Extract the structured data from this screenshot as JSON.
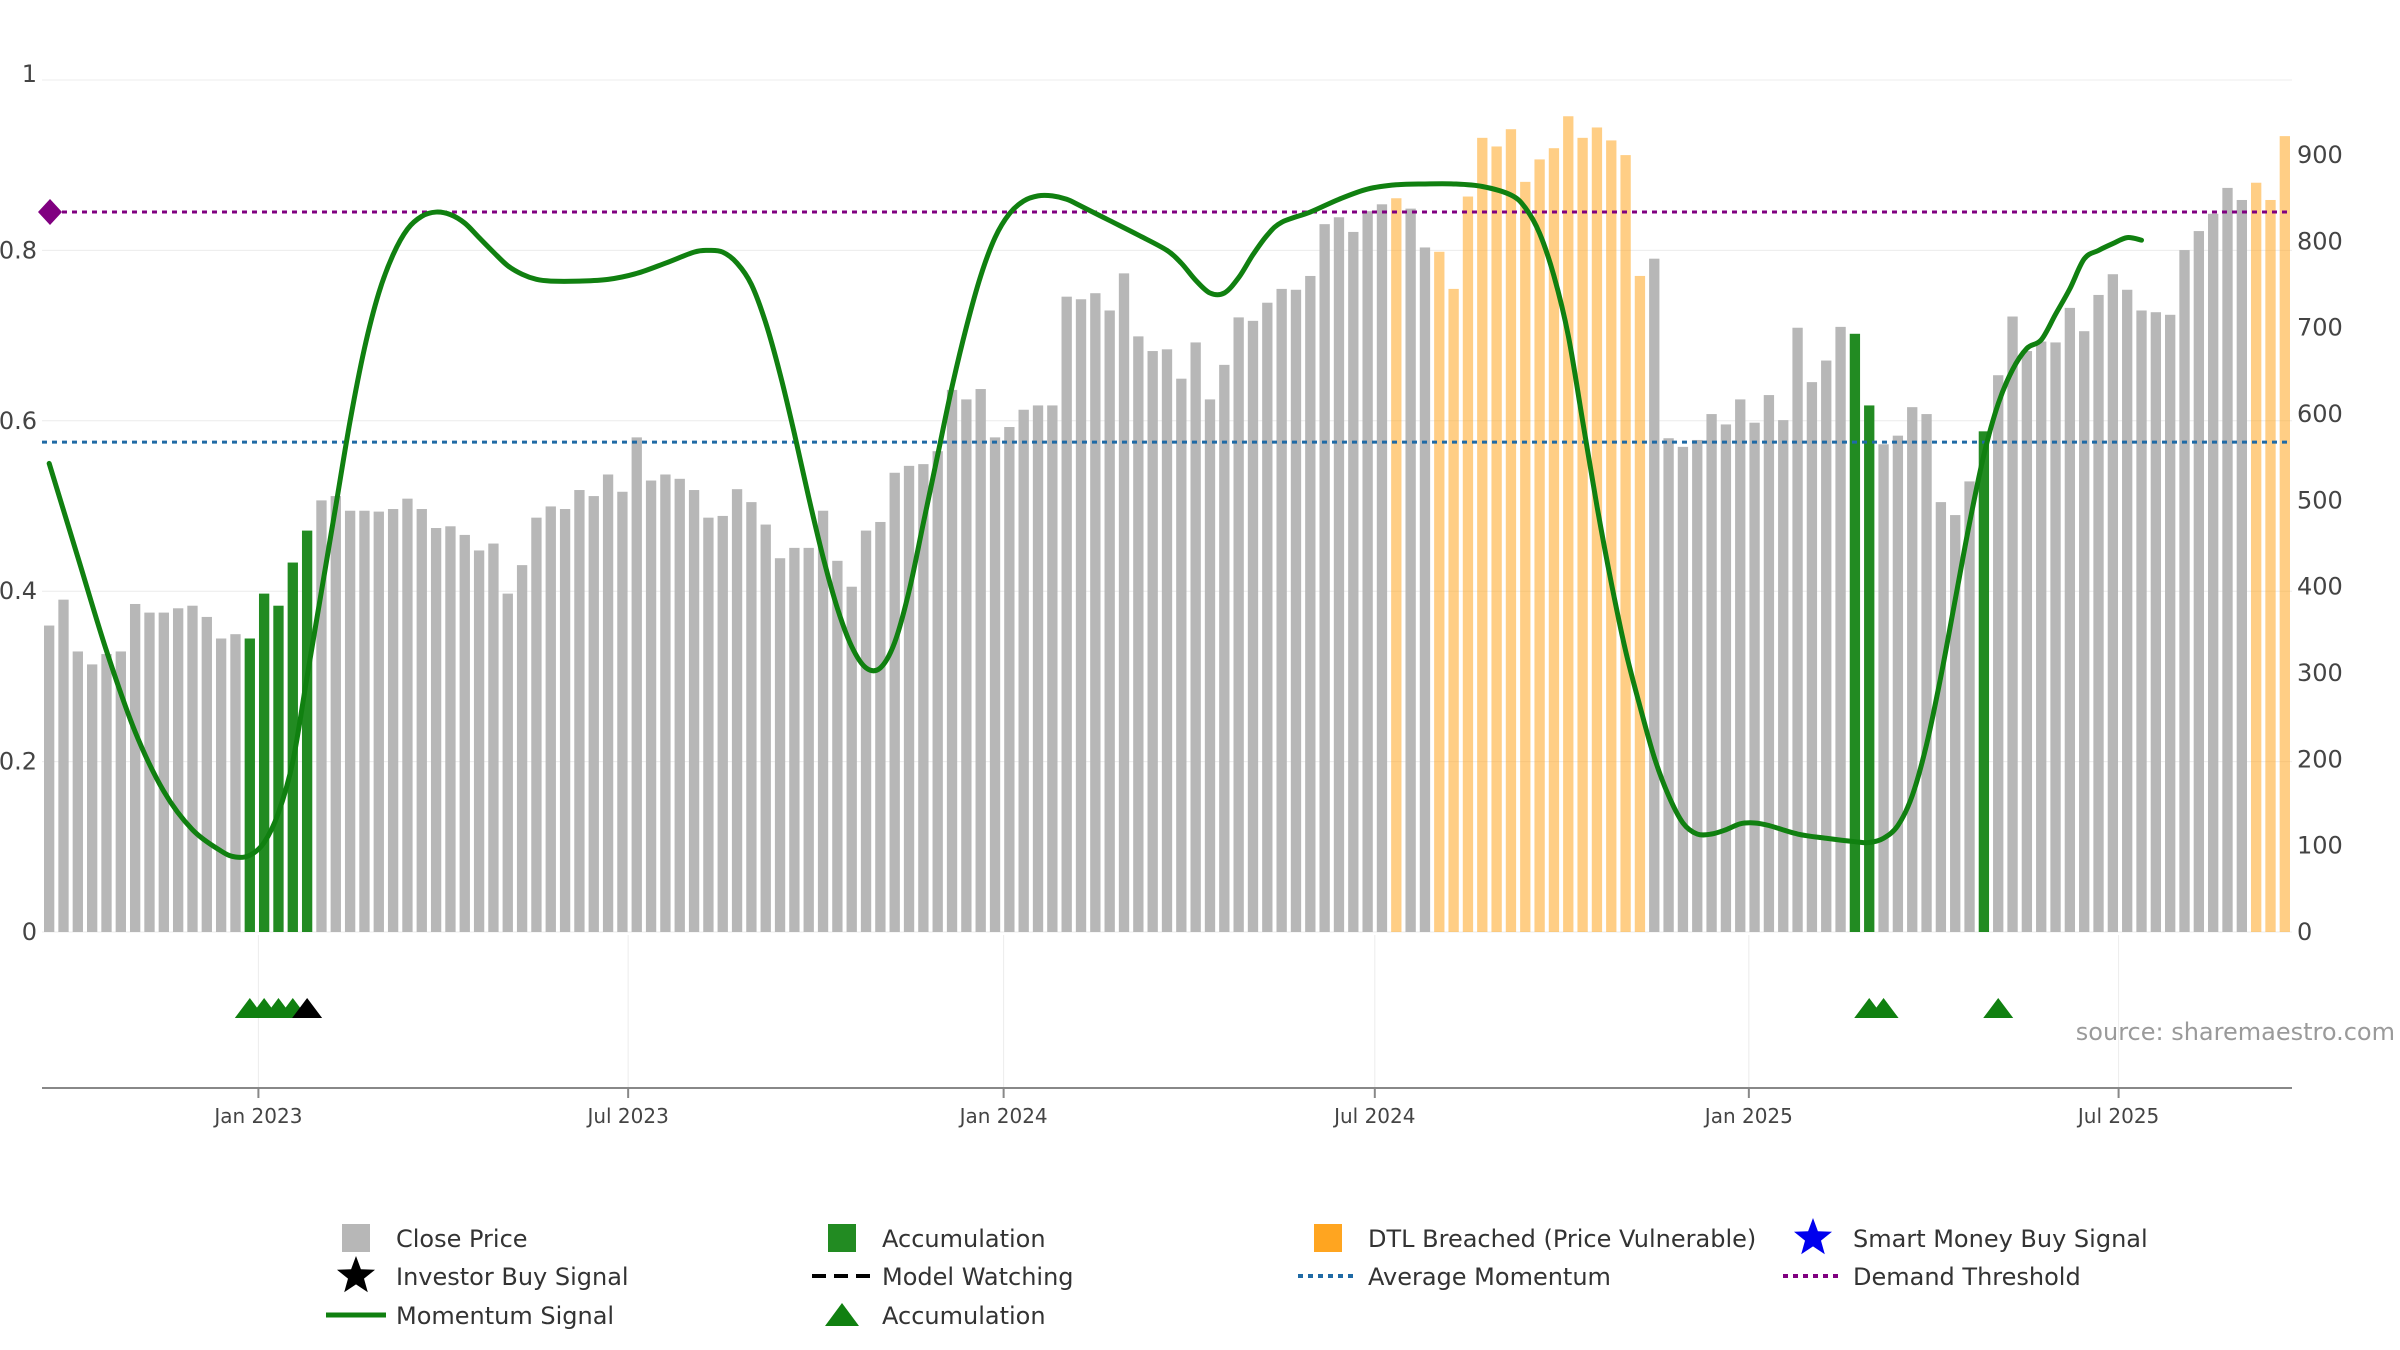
{
  "chart_data": {
    "type": "bar",
    "title": "",
    "left_axis": {
      "range": [
        0,
        1
      ],
      "ticks": [
        "0",
        "0.2",
        "0.4",
        "0.6",
        "0.8",
        "1"
      ]
    },
    "right_axis": {
      "range": [
        0,
        987
      ],
      "ticks": [
        "0",
        "100",
        "200",
        "300",
        "400",
        "500",
        "600",
        "700",
        "800",
        "900"
      ]
    },
    "x_ticks": [
      "Jan 2023",
      "Jul 2023",
      "Jan 2024",
      "Jul 2024",
      "Jan 2025",
      "Jul 2025"
    ],
    "x_tick_weeks": [
      14.6,
      40.4,
      66.6,
      92.5,
      118.6,
      144.4
    ],
    "close_prices": [
      355,
      385,
      325,
      310,
      322,
      325,
      380,
      370,
      370,
      375,
      378,
      365,
      340,
      345,
      340,
      392,
      378,
      428,
      465,
      500,
      505,
      488,
      488,
      487,
      490,
      502,
      490,
      468,
      470,
      460,
      442,
      450,
      392,
      425,
      480,
      493,
      490,
      512,
      505,
      530,
      510,
      573,
      523,
      530,
      525,
      512,
      480,
      482,
      513,
      498,
      472,
      433,
      445,
      445,
      488,
      430,
      400,
      465,
      475,
      532,
      540,
      542,
      557,
      628,
      617,
      629,
      573,
      585,
      605,
      610,
      610,
      736,
      733,
      740,
      720,
      763,
      690,
      673,
      675,
      641,
      683,
      617,
      657,
      712,
      708,
      729,
      745,
      744,
      760,
      820,
      828,
      811,
      835,
      843,
      850,
      838,
      793,
      788,
      745,
      852,
      920,
      910,
      930,
      869,
      895,
      908,
      945,
      920,
      932,
      917,
      900,
      760,
      780,
      572,
      562,
      570,
      600,
      588,
      617,
      590,
      622,
      593,
      700,
      637,
      662,
      701,
      693,
      610,
      565,
      575,
      608,
      600,
      498,
      483,
      522,
      580,
      645,
      713,
      673,
      684,
      683,
      723,
      696,
      738,
      762,
      744,
      720,
      718,
      715,
      790,
      812,
      832,
      862,
      848,
      868,
      848,
      922
    ],
    "accumulation_bar_weeks": [
      14,
      15,
      16,
      17,
      18,
      126,
      127,
      135
    ],
    "dtl_breached_weeks": [
      94,
      97,
      98,
      99,
      100,
      101,
      102,
      103,
      104,
      105,
      106,
      107,
      108,
      109,
      110,
      111,
      154,
      155,
      156,
      157,
      158
    ],
    "momentum_signal": [
      [
        0,
        0.55
      ],
      [
        2,
        0.44
      ],
      [
        4,
        0.33
      ],
      [
        6,
        0.235
      ],
      [
        8,
        0.165
      ],
      [
        10,
        0.12
      ],
      [
        12,
        0.095
      ],
      [
        13,
        0.088
      ],
      [
        14,
        0.09
      ],
      [
        15,
        0.105
      ],
      [
        16,
        0.14
      ],
      [
        17,
        0.2
      ],
      [
        18,
        0.3
      ],
      [
        19,
        0.4
      ],
      [
        20,
        0.5
      ],
      [
        21,
        0.6
      ],
      [
        22,
        0.685
      ],
      [
        23,
        0.75
      ],
      [
        24,
        0.795
      ],
      [
        25,
        0.825
      ],
      [
        26,
        0.84
      ],
      [
        27,
        0.845
      ],
      [
        28,
        0.842
      ],
      [
        29,
        0.832
      ],
      [
        30,
        0.815
      ],
      [
        31,
        0.798
      ],
      [
        32,
        0.782
      ],
      [
        33,
        0.772
      ],
      [
        34,
        0.766
      ],
      [
        35,
        0.764
      ],
      [
        37,
        0.764
      ],
      [
        39,
        0.766
      ],
      [
        41,
        0.773
      ],
      [
        43,
        0.785
      ],
      [
        45,
        0.798
      ],
      [
        46,
        0.8
      ],
      [
        47,
        0.798
      ],
      [
        48,
        0.785
      ],
      [
        49,
        0.76
      ],
      [
        50,
        0.715
      ],
      [
        51,
        0.655
      ],
      [
        52,
        0.585
      ],
      [
        53,
        0.51
      ],
      [
        54,
        0.44
      ],
      [
        55,
        0.38
      ],
      [
        56,
        0.335
      ],
      [
        57,
        0.31
      ],
      [
        58,
        0.31
      ],
      [
        59,
        0.34
      ],
      [
        60,
        0.4
      ],
      [
        61,
        0.48
      ],
      [
        62,
        0.56
      ],
      [
        63,
        0.64
      ],
      [
        64,
        0.71
      ],
      [
        65,
        0.77
      ],
      [
        66,
        0.815
      ],
      [
        67,
        0.843
      ],
      [
        68,
        0.858
      ],
      [
        69,
        0.864
      ],
      [
        70,
        0.864
      ],
      [
        71,
        0.86
      ],
      [
        72,
        0.852
      ],
      [
        74,
        0.835
      ],
      [
        76,
        0.818
      ],
      [
        78,
        0.8
      ],
      [
        79,
        0.785
      ],
      [
        80,
        0.765
      ],
      [
        81,
        0.75
      ],
      [
        82,
        0.75
      ],
      [
        83,
        0.768
      ],
      [
        84,
        0.795
      ],
      [
        85,
        0.818
      ],
      [
        86,
        0.833
      ],
      [
        88,
        0.845
      ],
      [
        90,
        0.86
      ],
      [
        92,
        0.872
      ],
      [
        94,
        0.877
      ],
      [
        96,
        0.878
      ],
      [
        98,
        0.878
      ],
      [
        100,
        0.875
      ],
      [
        102,
        0.865
      ],
      [
        103,
        0.85
      ],
      [
        104,
        0.82
      ],
      [
        105,
        0.77
      ],
      [
        106,
        0.7
      ],
      [
        107,
        0.6
      ],
      [
        108,
        0.5
      ],
      [
        109,
        0.41
      ],
      [
        110,
        0.33
      ],
      [
        111,
        0.265
      ],
      [
        112,
        0.205
      ],
      [
        113,
        0.16
      ],
      [
        114,
        0.128
      ],
      [
        115,
        0.115
      ],
      [
        116,
        0.115
      ],
      [
        117,
        0.12
      ],
      [
        118,
        0.127
      ],
      [
        119,
        0.128
      ],
      [
        120,
        0.125
      ],
      [
        122,
        0.115
      ],
      [
        124,
        0.11
      ],
      [
        126,
        0.106
      ],
      [
        127,
        0.105
      ],
      [
        128,
        0.11
      ],
      [
        129,
        0.125
      ],
      [
        130,
        0.16
      ],
      [
        131,
        0.22
      ],
      [
        132,
        0.3
      ],
      [
        133,
        0.39
      ],
      [
        134,
        0.48
      ],
      [
        135,
        0.56
      ],
      [
        136,
        0.62
      ],
      [
        137,
        0.66
      ],
      [
        138,
        0.685
      ],
      [
        139,
        0.695
      ],
      [
        140,
        0.725
      ],
      [
        141,
        0.755
      ],
      [
        142,
        0.79
      ],
      [
        143,
        0.8
      ],
      [
        144,
        0.808
      ],
      [
        145,
        0.815
      ],
      [
        146,
        0.812
      ]
    ],
    "average_momentum": 0.575,
    "demand_threshold": 0.845,
    "accumulation_marker_weeks": [
      14,
      15,
      16,
      17,
      127,
      128,
      136
    ],
    "investor_buy_marker_weeks": [
      18
    ],
    "legend": [
      {
        "label": "Close Price",
        "symbol": "square",
        "color": "#b7b7b7"
      },
      {
        "label": "Accumulation",
        "symbol": "square",
        "color": "#228b22"
      },
      {
        "label": "DTL Breached (Price Vulnerable)",
        "symbol": "square",
        "color": "#ffa520"
      },
      {
        "label": "Smart Money Buy Signal",
        "symbol": "star",
        "color": "#0000ee"
      },
      {
        "label": "Investor Buy Signal",
        "symbol": "star",
        "color": "#000000"
      },
      {
        "label": "Model Watching",
        "symbol": "dash",
        "color": "#000000"
      },
      {
        "label": "Average Momentum",
        "symbol": "dot",
        "color": "#1f6aa5"
      },
      {
        "label": "Demand Threshold",
        "symbol": "dot",
        "color": "#800080"
      },
      {
        "label": "Momentum Signal",
        "symbol": "line",
        "color": "#108010"
      },
      {
        "label": "Accumulation",
        "symbol": "triangle",
        "color": "#108010"
      }
    ],
    "source": "source: sharemaestro.com",
    "colors": {
      "close": "#b7b7b7",
      "accumulation": "#228b22",
      "dtl": "#ffa520",
      "momentum": "#108010",
      "average": "#1f6aa5",
      "threshold": "#800080",
      "marker_accumulation": "#108010",
      "marker_investor": "#000000"
    }
  }
}
